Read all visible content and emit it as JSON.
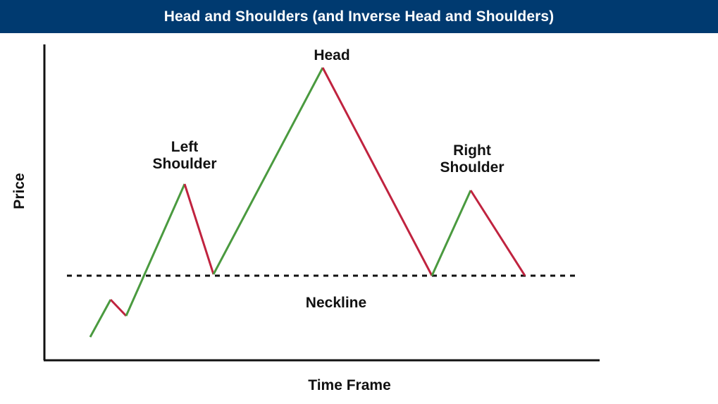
{
  "header": {
    "title": "Head and Shoulders (and Inverse Head and Shoulders)"
  },
  "axes": {
    "y_label": "Price",
    "x_label": "Time Frame"
  },
  "annotations": {
    "left_shoulder_line1": "Left",
    "left_shoulder_line2": "Shoulder",
    "head": "Head",
    "right_shoulder_line1": "Right",
    "right_shoulder_line2": "Shoulder",
    "neckline": "Neckline"
  },
  "colors": {
    "header_bg": "#003a70",
    "rising": "#4a9a3f",
    "falling": "#c0233f",
    "axis": "#111111"
  }
}
